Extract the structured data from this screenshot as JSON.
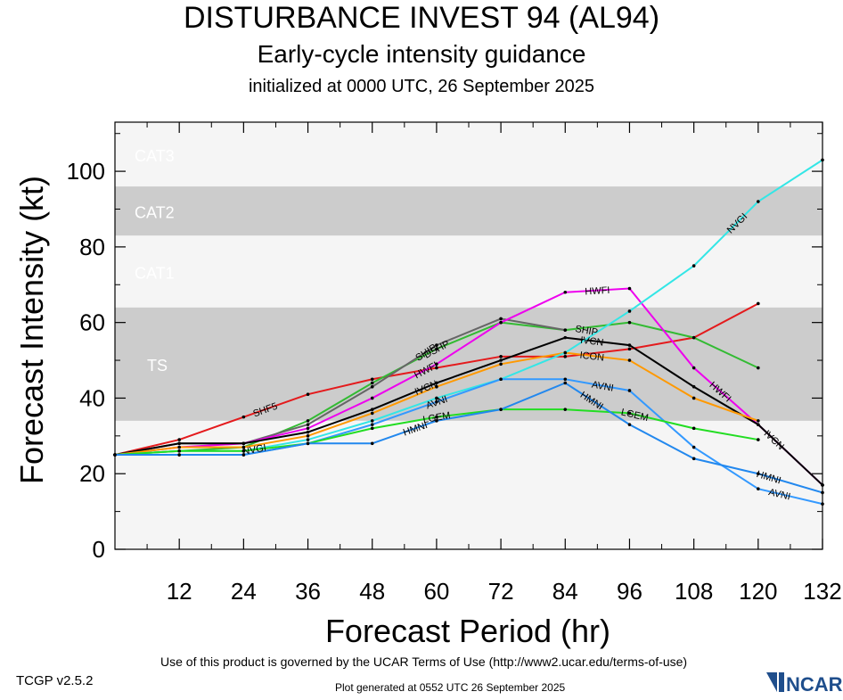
{
  "header": {
    "title": "DISTURBANCE INVEST 94 (AL94)",
    "subtitle": "Early-cycle intensity guidance",
    "init": "initialized at 0000 UTC, 26 September 2025"
  },
  "footer": {
    "version": "TCGP v2.5.2",
    "terms": "Use of this product is governed by the UCAR Terms of Use (http://www2.ucar.edu/terms-of-use)",
    "generated": "Plot generated at 0552 UTC   26 September 2025",
    "logo_text": "NCAR"
  },
  "chart_data": {
    "type": "line",
    "xlabel": "Forecast Period (hr)",
    "ylabel": "Forecast Intensity (kt)",
    "xlim": [
      0,
      132
    ],
    "ylim": [
      0,
      113
    ],
    "xticks": [
      12,
      24,
      36,
      48,
      60,
      72,
      84,
      96,
      108,
      120,
      132
    ],
    "yticks": [
      0,
      20,
      40,
      60,
      80,
      100
    ],
    "bands": [
      {
        "label": "TS",
        "from": 34,
        "to": 64,
        "color": "#cccccc"
      },
      {
        "label": "CAT1",
        "from": 64,
        "to": 83,
        "color": "#f5f5f5"
      },
      {
        "label": "CAT2",
        "from": 83,
        "to": 96,
        "color": "#cccccc"
      },
      {
        "label": "CAT3",
        "from": 96,
        "to": 113,
        "color": "#f5f5f5"
      }
    ],
    "below_band_color": "#f5f5f5",
    "series": [
      {
        "name": "SHF5",
        "color": "#e41a1c",
        "x": [
          0,
          12,
          24,
          36,
          48,
          60,
          72,
          84,
          96,
          108,
          120
        ],
        "y": [
          25,
          29,
          35,
          41,
          45,
          48,
          51,
          51,
          53,
          56,
          65
        ],
        "labels": [
          {
            "text": "SHF5",
            "at": 28
          }
        ]
      },
      {
        "name": "DSHP",
        "color": "#33bb33",
        "x": [
          0,
          12,
          24,
          36,
          48,
          60,
          72,
          84,
          96,
          108,
          120
        ],
        "y": [
          25,
          26,
          27,
          34,
          44,
          53,
          60,
          58,
          60,
          56,
          48
        ],
        "labels": [
          {
            "text": "DSHP",
            "at": 60
          }
        ]
      },
      {
        "name": "SHIP",
        "color": "#666666",
        "x": [
          0,
          12,
          24,
          36,
          48,
          60,
          72,
          84
        ],
        "y": [
          25,
          28,
          28,
          33,
          43,
          54,
          61,
          58
        ],
        "labels": [
          {
            "text": "SHIP",
            "at": 58
          },
          {
            "text": "SHIP",
            "at": 88
          }
        ]
      },
      {
        "name": "HWFI",
        "color": "#ee00ee",
        "x": [
          0,
          12,
          24,
          36,
          48,
          60,
          72,
          84,
          96,
          108,
          120,
          132
        ],
        "y": [
          25,
          27,
          28,
          32,
          40,
          49,
          60,
          68,
          69,
          48,
          33,
          17
        ],
        "labels": [
          {
            "text": "HWFI",
            "at": 58
          },
          {
            "text": "HWFI",
            "at": 90
          },
          {
            "text": "HWFI",
            "at": 113
          }
        ]
      },
      {
        "name": "IVCN",
        "color": "#000000",
        "x": [
          0,
          12,
          24,
          36,
          48,
          60,
          72,
          84,
          96,
          108,
          120,
          132
        ],
        "y": [
          25,
          28,
          28,
          31,
          37,
          44,
          50,
          56,
          54,
          43,
          33,
          17
        ],
        "labels": [
          {
            "text": "IVCN",
            "at": 58
          },
          {
            "text": "IVCN",
            "at": 89
          },
          {
            "text": "IVCN",
            "at": 123
          }
        ]
      },
      {
        "name": "ICON",
        "color": "#ff9900",
        "x": [
          0,
          12,
          24,
          36,
          48,
          60,
          72,
          84,
          96,
          108,
          120
        ],
        "y": [
          25,
          27,
          27,
          30,
          36,
          43,
          49,
          52,
          50,
          40,
          34
        ],
        "labels": [
          {
            "text": "ICON",
            "at": 89
          }
        ]
      },
      {
        "name": "NVGI",
        "color": "#33e6e6",
        "x": [
          0,
          12,
          24,
          36,
          48,
          60,
          72,
          84,
          96,
          108,
          120,
          132
        ],
        "y": [
          25,
          26,
          26,
          29,
          34,
          40,
          45,
          52,
          63,
          75,
          92,
          103
        ],
        "labels": [
          {
            "text": "NVGI",
            "at": 26
          },
          {
            "text": "NVGI",
            "at": 116
          }
        ]
      },
      {
        "name": "AVNI",
        "color": "#3399ff",
        "x": [
          0,
          12,
          24,
          36,
          48,
          60,
          72,
          84,
          96,
          108,
          120,
          132
        ],
        "y": [
          25,
          25,
          25,
          28,
          33,
          39,
          45,
          45,
          42,
          27,
          16,
          12
        ],
        "labels": [
          {
            "text": "AVNI",
            "at": 60
          },
          {
            "text": "AVNI",
            "at": 91
          },
          {
            "text": "AVNI",
            "at": 124
          }
        ]
      },
      {
        "name": "LGEM",
        "color": "#22dd22",
        "x": [
          0,
          12,
          24,
          36,
          48,
          60,
          72,
          84,
          96,
          108,
          120
        ],
        "y": [
          25,
          26,
          26,
          28,
          32,
          35,
          37,
          37,
          36,
          32,
          29
        ],
        "labels": [
          {
            "text": "LGEM",
            "at": 60
          },
          {
            "text": "LGEM",
            "at": 97
          }
        ]
      },
      {
        "name": "HMNI",
        "color": "#2288ee",
        "x": [
          0,
          12,
          24,
          36,
          48,
          60,
          72,
          84,
          96,
          108,
          120,
          132
        ],
        "y": [
          25,
          25,
          25,
          28,
          28,
          34,
          37,
          44,
          33,
          24,
          20,
          15
        ],
        "labels": [
          {
            "text": "HMNI",
            "at": 56
          },
          {
            "text": "HMNI",
            "at": 89
          },
          {
            "text": "HMNI",
            "at": 122
          }
        ]
      }
    ]
  }
}
